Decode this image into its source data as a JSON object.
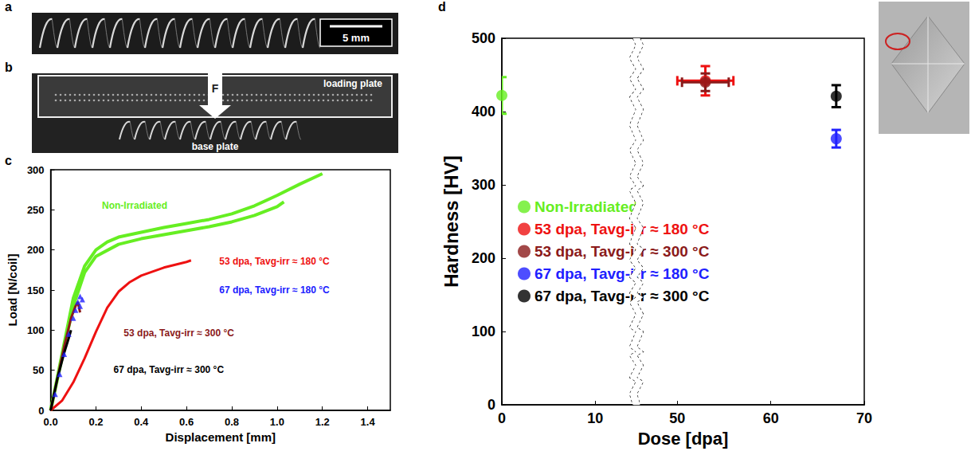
{
  "photos": [
    {
      "label": "a",
      "scale_bar": "5 mm"
    },
    {
      "label": "b",
      "force": "F",
      "upper_plate": "loading plate",
      "lower_plate": "base plate"
    }
  ],
  "chart_data": [
    {
      "label": "c",
      "type": "line",
      "x_label": "Displacement [mm]",
      "y_label": "Load [N/coil]",
      "xlim": [
        0,
        1.5
      ],
      "xticks": [
        {
          "value": 0,
          "label": "0.0"
        },
        {
          "value": 0.2,
          "label": "0.2"
        },
        {
          "value": 0.4,
          "label": "0.4"
        },
        {
          "value": 0.6,
          "label": "0.6"
        },
        {
          "value": 0.8,
          "label": "0.8"
        },
        {
          "value": 1.0,
          "label": "1.0"
        },
        {
          "value": 1.2,
          "label": "1.2"
        },
        {
          "value": 1.4,
          "label": "1.4"
        }
      ],
      "ylim": [
        0,
        300
      ],
      "yticks": [
        0,
        50,
        100,
        150,
        200,
        250,
        300
      ],
      "grid": false,
      "series": [
        {
          "name": "Non-Irradiated",
          "color": "#66ee22",
          "values": [
            [
              0,
              0
            ],
            [
              0.05,
              70
            ],
            [
              0.1,
              140
            ],
            [
              0.15,
              180
            ],
            [
              0.2,
              200
            ],
            [
              0.25,
              210
            ],
            [
              0.3,
              216
            ],
            [
              0.4,
              222
            ],
            [
              0.5,
              228
            ],
            [
              0.6,
              233
            ],
            [
              0.7,
              238
            ],
            [
              0.8,
              245
            ],
            [
              0.9,
              255
            ],
            [
              1.0,
              268
            ],
            [
              1.1,
              282
            ],
            [
              1.2,
              295
            ],
            null,
            [
              0,
              0
            ],
            [
              0.05,
              65
            ],
            [
              0.1,
              130
            ],
            [
              0.15,
              172
            ],
            [
              0.2,
              192
            ],
            [
              0.3,
              207
            ],
            [
              0.4,
              214
            ],
            [
              0.5,
              219
            ],
            [
              0.6,
              224
            ],
            [
              0.7,
              229
            ],
            [
              0.8,
              235
            ],
            [
              0.9,
              243
            ],
            [
              1.0,
              254
            ],
            [
              1.03,
              260
            ]
          ]
        },
        {
          "name": "53 dpa, Tavg-irr ≈ 180 °C",
          "color": "#ee1111",
          "values": [
            [
              0,
              0
            ],
            [
              0.05,
              12
            ],
            [
              0.1,
              35
            ],
            [
              0.15,
              65
            ],
            [
              0.2,
              98
            ],
            [
              0.25,
              128
            ],
            [
              0.3,
              148
            ],
            [
              0.35,
              160
            ],
            [
              0.4,
              168
            ],
            [
              0.5,
              178
            ],
            [
              0.6,
              185
            ],
            [
              0.62,
              187
            ]
          ]
        },
        {
          "name": "53 dpa, Tavg-irr ≈ 300 °C",
          "color": "#8b1a1a",
          "values": [
            [
              0,
              0
            ],
            [
              0.03,
              40
            ],
            [
              0.06,
              80
            ],
            [
              0.09,
              115
            ],
            [
              0.11,
              130
            ],
            [
              0.12,
              135
            ],
            [
              0.13,
              122
            ]
          ]
        },
        {
          "name": "67 dpa, Tavg-irr ≈ 180 °C",
          "color": "#2020ff",
          "type": "scatter",
          "marker": "triangle",
          "values": [
            [
              0.02,
              20
            ],
            [
              0.04,
              45
            ],
            [
              0.06,
              70
            ],
            [
              0.08,
              95
            ],
            [
              0.1,
              115
            ],
            [
              0.11,
              125
            ],
            [
              0.12,
              135
            ],
            [
              0.13,
              142
            ],
            [
              0.14,
              138
            ],
            [
              0.13,
              130
            ]
          ]
        },
        {
          "name": "67 dpa, Tavg-irr ≈ 300 °C",
          "color": "#000000",
          "values": [
            [
              0,
              0
            ],
            [
              0.03,
              40
            ],
            [
              0.06,
              72
            ],
            [
              0.08,
              90
            ],
            [
              0.09,
              100
            ]
          ]
        }
      ]
    },
    {
      "label": "d",
      "type": "scatter",
      "x_label": "Dose [dpa]",
      "y_label": "Hardness [HV]",
      "xlim": [
        0,
        70
      ],
      "xticks": [
        0,
        10,
        50,
        60,
        70
      ],
      "x_break": [
        14,
        46
      ],
      "ylim": [
        0,
        500
      ],
      "yticks": [
        0,
        100,
        200,
        300,
        400,
        500
      ],
      "grid": false,
      "legend": "left",
      "series": [
        {
          "name": "Non-Irradiated",
          "color": "#66ee22",
          "values": [
            [
              0,
              422
            ]
          ],
          "xerr": [
            0
          ],
          "yerr": [
            25
          ]
        },
        {
          "name": "53 dpa, Tavg-irr ≈ 180 °C",
          "color": "#ee1111",
          "values": [
            [
              53,
              442
            ]
          ],
          "xerr": [
            3
          ],
          "yerr": [
            20
          ]
        },
        {
          "name": "53 dpa, Tavg-irr ≈ 300 °C",
          "color": "#8b1a1a",
          "values": [
            [
              53,
              440
            ]
          ],
          "xerr": [
            2.5
          ],
          "yerr": [
            12
          ]
        },
        {
          "name": "67 dpa, Tavg-irr ≈ 180 °C",
          "color": "#2020ff",
          "values": [
            [
              67,
              363
            ]
          ],
          "xerr": [
            0
          ],
          "yerr": [
            12
          ]
        },
        {
          "name": "67 dpa, Tavg-irr ≈ 300 °C",
          "color": "#000000",
          "values": [
            [
              67,
              421
            ]
          ],
          "xerr": [
            0
          ],
          "yerr": [
            15
          ]
        }
      ]
    }
  ]
}
